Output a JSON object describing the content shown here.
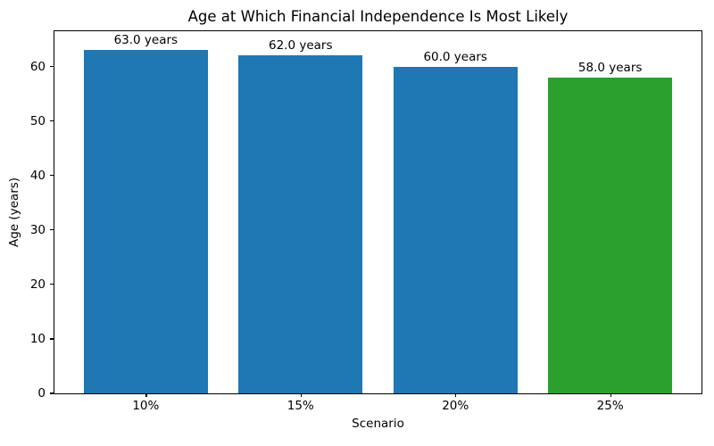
{
  "chart_data": {
    "type": "bar",
    "title": "Age at Which Financial Independence Is Most Likely",
    "xlabel": "Scenario",
    "ylabel": "Age (years)",
    "categories": [
      "10%",
      "15%",
      "20%",
      "25%"
    ],
    "values": [
      63.0,
      62.0,
      60.0,
      58.0
    ],
    "bar_labels": [
      "63.0 years",
      "62.0 years",
      "60.0 years",
      "58.0 years"
    ],
    "bar_colors": [
      "#1f77b4",
      "#1f77b4",
      "#1f77b4",
      "#2ca02c"
    ],
    "ylim": [
      0,
      66.5
    ],
    "xlim": [
      -0.59,
      3.59
    ],
    "yticks": [
      0,
      10,
      20,
      30,
      40,
      50,
      60
    ],
    "bar_width_units": 0.8,
    "grid": false,
    "legend": "none",
    "spine_color": "#000000",
    "background_color": "#ffffff"
  }
}
